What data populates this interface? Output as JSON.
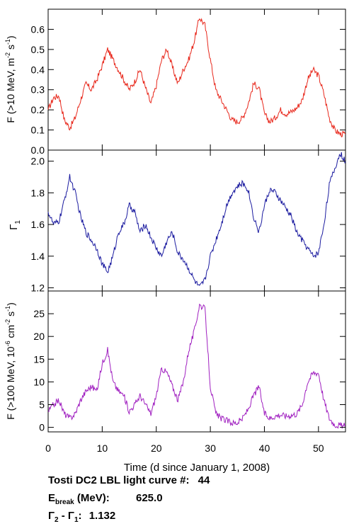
{
  "chart_data": [
    {
      "type": "line",
      "panel": "top",
      "color": "#e8281c",
      "ylabel_main": "F (>10 MeV, m",
      "ylabel_sup1": "-2",
      "ylabel_mid": " s",
      "ylabel_sup2": "-1",
      "ylabel_end": ")",
      "xlim": [
        0,
        55
      ],
      "ylim": [
        0.0,
        0.7
      ],
      "yticks": [
        0.0,
        0.1,
        0.2,
        0.3,
        0.4,
        0.5,
        0.6
      ],
      "ytick_labels": [
        "0.0",
        "0.1",
        "0.2",
        "0.3",
        "0.4",
        "0.5",
        "0.6"
      ],
      "x": [
        0,
        1,
        2,
        3,
        4,
        5,
        6,
        7,
        8,
        9,
        10,
        11,
        12,
        13,
        14,
        15,
        16,
        17,
        18,
        19,
        20,
        21,
        22,
        23,
        24,
        25,
        26,
        27,
        28,
        29,
        30,
        31,
        32,
        33,
        34,
        35,
        36,
        37,
        38,
        39,
        40,
        41,
        42,
        43,
        44,
        45,
        46,
        47,
        48,
        49,
        50,
        51,
        52,
        53,
        54,
        55
      ],
      "y": [
        0.2,
        0.26,
        0.27,
        0.15,
        0.11,
        0.16,
        0.25,
        0.33,
        0.3,
        0.35,
        0.42,
        0.5,
        0.45,
        0.4,
        0.35,
        0.3,
        0.34,
        0.4,
        0.31,
        0.23,
        0.32,
        0.45,
        0.5,
        0.41,
        0.33,
        0.4,
        0.45,
        0.54,
        0.66,
        0.62,
        0.45,
        0.3,
        0.25,
        0.2,
        0.15,
        0.14,
        0.16,
        0.23,
        0.33,
        0.31,
        0.18,
        0.14,
        0.16,
        0.2,
        0.18,
        0.19,
        0.21,
        0.25,
        0.35,
        0.4,
        0.37,
        0.28,
        0.16,
        0.1,
        0.08,
        0.08
      ]
    },
    {
      "type": "line",
      "panel": "middle",
      "color": "#1c1ca0",
      "ylabel_main": "Γ",
      "ylabel_sub": "1",
      "xlim": [
        0,
        55
      ],
      "ylim": [
        1.18,
        2.07
      ],
      "yticks": [
        1.2,
        1.4,
        1.6,
        1.8,
        2.0
      ],
      "ytick_labels": [
        "1.2",
        "1.4",
        "1.6",
        "1.8",
        "2.0"
      ],
      "x": [
        0,
        1,
        2,
        3,
        4,
        5,
        6,
        7,
        8,
        9,
        10,
        11,
        12,
        13,
        14,
        15,
        16,
        17,
        18,
        19,
        20,
        21,
        22,
        23,
        24,
        25,
        26,
        27,
        28,
        29,
        30,
        31,
        32,
        33,
        34,
        35,
        36,
        37,
        38,
        39,
        40,
        41,
        42,
        43,
        44,
        45,
        46,
        47,
        48,
        49,
        50,
        51,
        52,
        53,
        54,
        55
      ],
      "y": [
        1.68,
        1.6,
        1.62,
        1.75,
        1.9,
        1.8,
        1.65,
        1.55,
        1.5,
        1.45,
        1.35,
        1.3,
        1.4,
        1.55,
        1.6,
        1.72,
        1.68,
        1.55,
        1.6,
        1.52,
        1.45,
        1.4,
        1.5,
        1.55,
        1.42,
        1.38,
        1.32,
        1.25,
        1.2,
        1.25,
        1.4,
        1.5,
        1.6,
        1.72,
        1.8,
        1.84,
        1.86,
        1.82,
        1.65,
        1.55,
        1.72,
        1.82,
        1.8,
        1.75,
        1.7,
        1.65,
        1.55,
        1.5,
        1.45,
        1.4,
        1.42,
        1.6,
        1.85,
        1.95,
        2.05,
        2.0
      ]
    },
    {
      "type": "line",
      "panel": "bottom",
      "color": "#a020c0",
      "ylabel_main": "F (>100 MeV, 10",
      "ylabel_sup1": "-6",
      "ylabel_mid": " cm",
      "ylabel_sup2": "-2",
      "ylabel_mid2": " s",
      "ylabel_sup3": "-1",
      "ylabel_end": ")",
      "xlabel": "Time (d since January 1, 2008)",
      "xlim": [
        0,
        55
      ],
      "ylim": [
        -1,
        30
      ],
      "yticks": [
        0,
        5,
        10,
        15,
        20,
        25
      ],
      "ytick_labels": [
        "0",
        "5",
        "10",
        "15",
        "20",
        "25"
      ],
      "xticks": [
        0,
        10,
        20,
        30,
        40,
        50
      ],
      "xtick_labels": [
        "0",
        "10",
        "20",
        "30",
        "40",
        "50"
      ],
      "x": [
        0,
        1,
        2,
        3,
        4,
        5,
        6,
        7,
        8,
        9,
        10,
        11,
        12,
        13,
        14,
        15,
        16,
        17,
        18,
        19,
        20,
        21,
        22,
        23,
        24,
        25,
        26,
        27,
        28,
        29,
        30,
        31,
        32,
        33,
        34,
        35,
        36,
        37,
        38,
        39,
        40,
        41,
        42,
        43,
        44,
        45,
        46,
        47,
        48,
        49,
        50,
        51,
        52,
        53,
        54,
        55
      ],
      "y": [
        3.5,
        5,
        6,
        3,
        2,
        3,
        6,
        8,
        9,
        8,
        14,
        17,
        10,
        8,
        7,
        3.5,
        5,
        7,
        5,
        3,
        7,
        13,
        12,
        9,
        6,
        10,
        17,
        21,
        27,
        26,
        9,
        3,
        2,
        1.5,
        1,
        1,
        2,
        4,
        7,
        9,
        3,
        2,
        2.5,
        2.8,
        2.5,
        2.7,
        3,
        5,
        10,
        12,
        12,
        6,
        2,
        0.6,
        0.4,
        0.3
      ]
    }
  ],
  "info": {
    "title_line": "Tosti DC2 LBL light curve #:",
    "curve_number": "44",
    "ebreak_symbol": "E",
    "ebreak_sub": "break",
    "ebreak_unit": "(MeV):",
    "ebreak_value": "625.0",
    "gamma_diff_label": "Γ",
    "gamma_diff_sub2": "2",
    "gamma_diff_minus": " - Γ",
    "gamma_diff_sub1": "1",
    "gamma_diff_colon": ":",
    "gamma_diff_value": "1.132"
  }
}
